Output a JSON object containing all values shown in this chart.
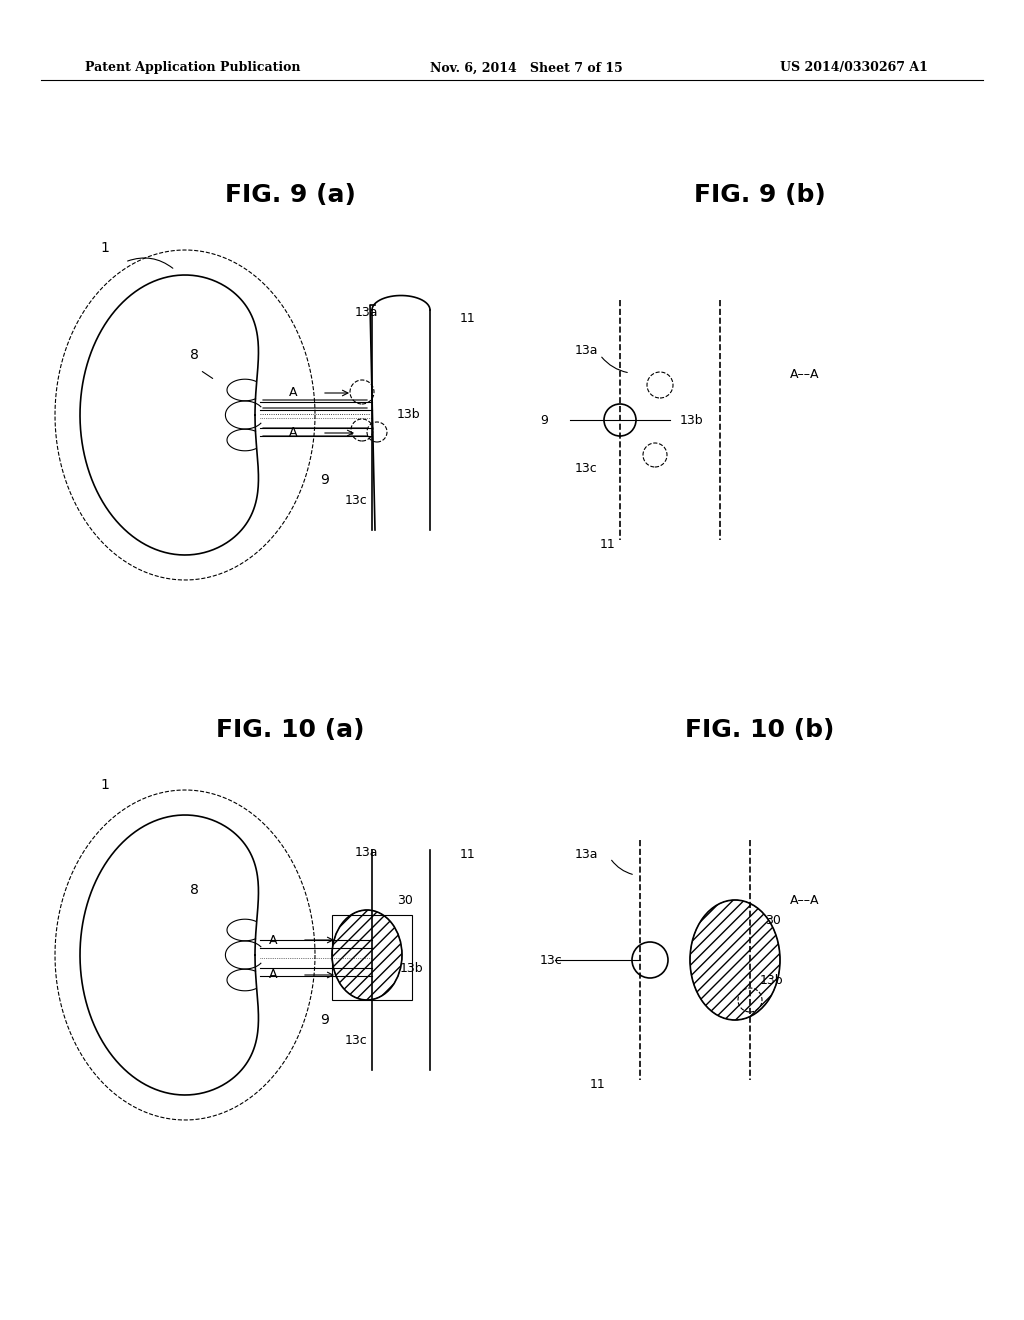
{
  "bg_color": "#ffffff",
  "header_left": "Patent Application Publication",
  "header_mid": "Nov. 6, 2014   Sheet 7 of 15",
  "header_right": "US 2014/0330267 A1",
  "fig9a_title": "FIG. 9 (a)",
  "fig9b_title": "FIG. 9 (b)",
  "fig10a_title": "FIG. 10 (a)",
  "fig10b_title": "FIG. 10 (b)"
}
